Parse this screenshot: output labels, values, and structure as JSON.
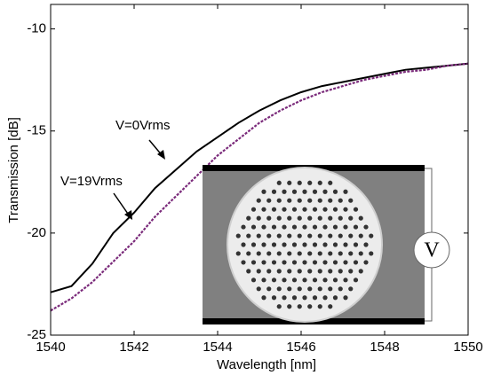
{
  "chart_data": {
    "type": "line",
    "x_label": "Wavelength [nm]",
    "y_label": "Transmission [dB]",
    "x": [
      1540,
      1540.5,
      1541,
      1541.5,
      1542,
      1542.5,
      1543,
      1543.5,
      1544,
      1544.5,
      1545,
      1545.5,
      1546,
      1546.5,
      1547,
      1547.5,
      1548,
      1548.5,
      1549,
      1549.5,
      1550
    ],
    "series": [
      {
        "name": "V=0Vrms",
        "color": "#000000",
        "values": [
          -22.9,
          -22.6,
          -21.5,
          -20.0,
          -19.0,
          -17.8,
          -16.9,
          -16.0,
          -15.3,
          -14.6,
          -14.0,
          -13.5,
          -13.1,
          -12.8,
          -12.6,
          -12.4,
          -12.2,
          -12.0,
          -11.9,
          -11.8,
          -11.7
        ]
      },
      {
        "name": "V=19Vrms",
        "color": "#7a2a7a",
        "values": [
          -23.8,
          -23.2,
          -22.4,
          -21.4,
          -20.4,
          -19.2,
          -18.2,
          -17.2,
          -16.2,
          -15.4,
          -14.6,
          -14.0,
          -13.5,
          -13.1,
          -12.8,
          -12.5,
          -12.3,
          -12.1,
          -12.0,
          -11.8,
          -11.7
        ]
      }
    ],
    "xlim": [
      1540,
      1550
    ],
    "xticks": [
      1540,
      1542,
      1544,
      1546,
      1548,
      1550
    ],
    "ylim": [
      -25,
      -8.8
    ],
    "yticks": [
      -25,
      -20,
      -15,
      -10
    ],
    "inset_label": "V"
  }
}
